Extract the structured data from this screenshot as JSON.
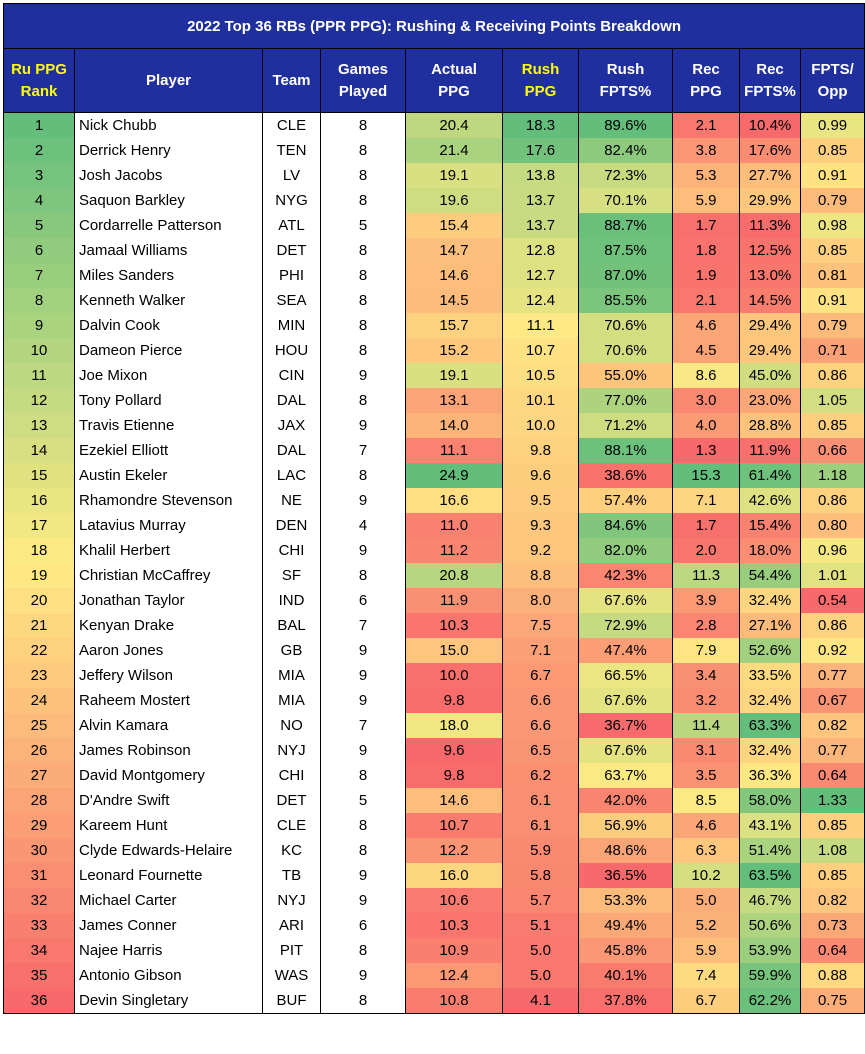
{
  "chart_data": {
    "type": "table",
    "title": "2022 Top 36 RBs (PPR PPG): Rushing & Receiving Points Breakdown",
    "columns": [
      {
        "key": "rank",
        "label": [
          "Ru PPG",
          "Rank"
        ],
        "highlight": true
      },
      {
        "key": "player",
        "label": [
          "Player"
        ]
      },
      {
        "key": "team",
        "label": [
          "Team"
        ]
      },
      {
        "key": "games",
        "label": [
          "Games",
          "Played"
        ]
      },
      {
        "key": "actual_ppg",
        "label": [
          "Actual",
          "PPG"
        ]
      },
      {
        "key": "rush_ppg",
        "label": [
          "Rush",
          "PPG"
        ],
        "highlight": true
      },
      {
        "key": "rush_fpts_pct",
        "label": [
          "Rush",
          "FPTS%"
        ]
      },
      {
        "key": "rec_ppg",
        "label": [
          "Rec",
          "PPG"
        ]
      },
      {
        "key": "rec_fpts_pct",
        "label": [
          "Rec",
          "FPTS%"
        ]
      },
      {
        "key": "fpts_opp",
        "label": [
          "FPTS/",
          "Opp"
        ]
      }
    ],
    "rows": [
      [
        "1",
        "Nick Chubb",
        "CLE",
        "8",
        "20.4",
        "18.3",
        "89.6%",
        "2.1",
        "10.4%",
        "0.99"
      ],
      [
        "2",
        "Derrick Henry",
        "TEN",
        "8",
        "21.4",
        "17.6",
        "82.4%",
        "3.8",
        "17.6%",
        "0.85"
      ],
      [
        "3",
        "Josh Jacobs",
        "LV",
        "8",
        "19.1",
        "13.8",
        "72.3%",
        "5.3",
        "27.7%",
        "0.91"
      ],
      [
        "4",
        "Saquon Barkley",
        "NYG",
        "8",
        "19.6",
        "13.7",
        "70.1%",
        "5.9",
        "29.9%",
        "0.79"
      ],
      [
        "5",
        "Cordarrelle Patterson",
        "ATL",
        "5",
        "15.4",
        "13.7",
        "88.7%",
        "1.7",
        "11.3%",
        "0.98"
      ],
      [
        "6",
        "Jamaal Williams",
        "DET",
        "8",
        "14.7",
        "12.8",
        "87.5%",
        "1.8",
        "12.5%",
        "0.85"
      ],
      [
        "7",
        "Miles Sanders",
        "PHI",
        "8",
        "14.6",
        "12.7",
        "87.0%",
        "1.9",
        "13.0%",
        "0.81"
      ],
      [
        "8",
        "Kenneth Walker",
        "SEA",
        "8",
        "14.5",
        "12.4",
        "85.5%",
        "2.1",
        "14.5%",
        "0.91"
      ],
      [
        "9",
        "Dalvin Cook",
        "MIN",
        "8",
        "15.7",
        "11.1",
        "70.6%",
        "4.6",
        "29.4%",
        "0.79"
      ],
      [
        "10",
        "Dameon Pierce",
        "HOU",
        "8",
        "15.2",
        "10.7",
        "70.6%",
        "4.5",
        "29.4%",
        "0.71"
      ],
      [
        "11",
        "Joe Mixon",
        "CIN",
        "9",
        "19.1",
        "10.5",
        "55.0%",
        "8.6",
        "45.0%",
        "0.86"
      ],
      [
        "12",
        "Tony Pollard",
        "DAL",
        "8",
        "13.1",
        "10.1",
        "77.0%",
        "3.0",
        "23.0%",
        "1.05"
      ],
      [
        "13",
        "Travis Etienne",
        "JAX",
        "9",
        "14.0",
        "10.0",
        "71.2%",
        "4.0",
        "28.8%",
        "0.85"
      ],
      [
        "14",
        "Ezekiel Elliott",
        "DAL",
        "7",
        "11.1",
        "9.8",
        "88.1%",
        "1.3",
        "11.9%",
        "0.66"
      ],
      [
        "15",
        "Austin Ekeler",
        "LAC",
        "8",
        "24.9",
        "9.6",
        "38.6%",
        "15.3",
        "61.4%",
        "1.18"
      ],
      [
        "16",
        "Rhamondre Stevenson",
        "NE",
        "9",
        "16.6",
        "9.5",
        "57.4%",
        "7.1",
        "42.6%",
        "0.86"
      ],
      [
        "17",
        "Latavius Murray",
        "DEN",
        "4",
        "11.0",
        "9.3",
        "84.6%",
        "1.7",
        "15.4%",
        "0.80"
      ],
      [
        "18",
        "Khalil Herbert",
        "CHI",
        "9",
        "11.2",
        "9.2",
        "82.0%",
        "2.0",
        "18.0%",
        "0.96"
      ],
      [
        "19",
        "Christian McCaffrey",
        "SF",
        "8",
        "20.8",
        "8.8",
        "42.3%",
        "11.3",
        "54.4%",
        "1.01"
      ],
      [
        "20",
        "Jonathan Taylor",
        "IND",
        "6",
        "11.9",
        "8.0",
        "67.6%",
        "3.9",
        "32.4%",
        "0.54"
      ],
      [
        "21",
        "Kenyan Drake",
        "BAL",
        "7",
        "10.3",
        "7.5",
        "72.9%",
        "2.8",
        "27.1%",
        "0.86"
      ],
      [
        "22",
        "Aaron Jones",
        "GB",
        "9",
        "15.0",
        "7.1",
        "47.4%",
        "7.9",
        "52.6%",
        "0.92"
      ],
      [
        "23",
        "Jeffery Wilson",
        "MIA",
        "9",
        "10.0",
        "6.7",
        "66.5%",
        "3.4",
        "33.5%",
        "0.77"
      ],
      [
        "24",
        "Raheem Mostert",
        "MIA",
        "9",
        "9.8",
        "6.6",
        "67.6%",
        "3.2",
        "32.4%",
        "0.67"
      ],
      [
        "25",
        "Alvin Kamara",
        "NO",
        "7",
        "18.0",
        "6.6",
        "36.7%",
        "11.4",
        "63.3%",
        "0.82"
      ],
      [
        "26",
        "James Robinson",
        "NYJ",
        "9",
        "9.6",
        "6.5",
        "67.6%",
        "3.1",
        "32.4%",
        "0.77"
      ],
      [
        "27",
        "David Montgomery",
        "CHI",
        "8",
        "9.8",
        "6.2",
        "63.7%",
        "3.5",
        "36.3%",
        "0.64"
      ],
      [
        "28",
        "D'Andre Swift",
        "DET",
        "5",
        "14.6",
        "6.1",
        "42.0%",
        "8.5",
        "58.0%",
        "1.33"
      ],
      [
        "29",
        "Kareem Hunt",
        "CLE",
        "8",
        "10.7",
        "6.1",
        "56.9%",
        "4.6",
        "43.1%",
        "0.85"
      ],
      [
        "30",
        "Clyde Edwards-Helaire",
        "KC",
        "8",
        "12.2",
        "5.9",
        "48.6%",
        "6.3",
        "51.4%",
        "1.08"
      ],
      [
        "31",
        "Leonard Fournette",
        "TB",
        "9",
        "16.0",
        "5.8",
        "36.5%",
        "10.2",
        "63.5%",
        "0.85"
      ],
      [
        "32",
        "Michael Carter",
        "NYJ",
        "9",
        "10.6",
        "5.7",
        "53.3%",
        "5.0",
        "46.7%",
        "0.82"
      ],
      [
        "33",
        "James Conner",
        "ARI",
        "6",
        "10.3",
        "5.1",
        "49.4%",
        "5.2",
        "50.6%",
        "0.73"
      ],
      [
        "34",
        "Najee Harris",
        "PIT",
        "8",
        "10.9",
        "5.0",
        "45.8%",
        "5.9",
        "53.9%",
        "0.64"
      ],
      [
        "35",
        "Antonio Gibson",
        "WAS",
        "9",
        "12.4",
        "5.0",
        "40.1%",
        "7.4",
        "59.9%",
        "0.88"
      ],
      [
        "36",
        "Devin Singletary",
        "BUF",
        "8",
        "10.8",
        "4.1",
        "37.8%",
        "6.7",
        "62.2%",
        "0.75"
      ]
    ],
    "colors": {
      "header_bg": "#1f2f9e",
      "header_text": "#ffffff",
      "header_highlight_text": "#ffff00",
      "scale_low": "#f8696b",
      "scale_mid": "#ffeb84",
      "scale_high": "#63be7b"
    },
    "color_scaled_columns": [
      "rank",
      "actual_ppg",
      "rush_ppg",
      "rush_fpts_pct",
      "rec_ppg",
      "rec_fpts_pct",
      "fpts_opp"
    ],
    "reversed_scale_columns": [
      "rank"
    ]
  }
}
